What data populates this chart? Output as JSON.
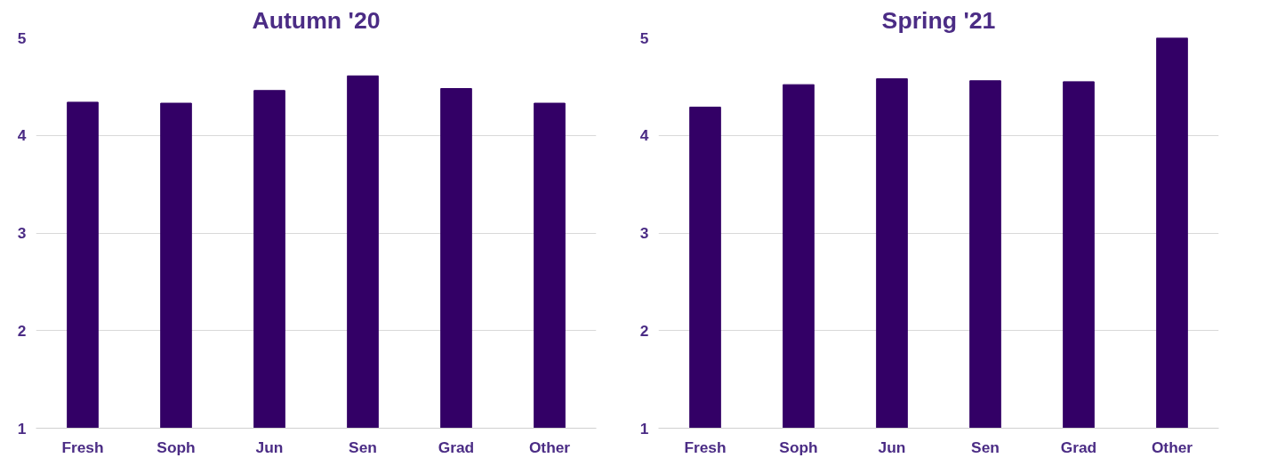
{
  "chart_data": [
    {
      "type": "bar",
      "title": "Autumn '20",
      "categories": [
        "Fresh",
        "Soph",
        "Jun",
        "Sen",
        "Grad",
        "Other"
      ],
      "values": [
        4.34,
        4.33,
        4.46,
        4.61,
        4.48,
        4.33
      ],
      "color": "#330066",
      "ylim": [
        1,
        5
      ],
      "yticks": [
        1,
        2,
        3,
        4,
        5
      ],
      "grid": "y"
    },
    {
      "type": "bar",
      "title": "Spring '21",
      "categories": [
        "Fresh",
        "Soph",
        "Jun",
        "Sen",
        "Grad",
        "Other"
      ],
      "values": [
        4.29,
        4.52,
        4.58,
        4.56,
        4.55,
        5.0
      ],
      "color": "#330066",
      "ylim": [
        1,
        5
      ],
      "yticks": [
        1,
        2,
        3,
        4,
        5
      ],
      "grid": "y"
    }
  ]
}
